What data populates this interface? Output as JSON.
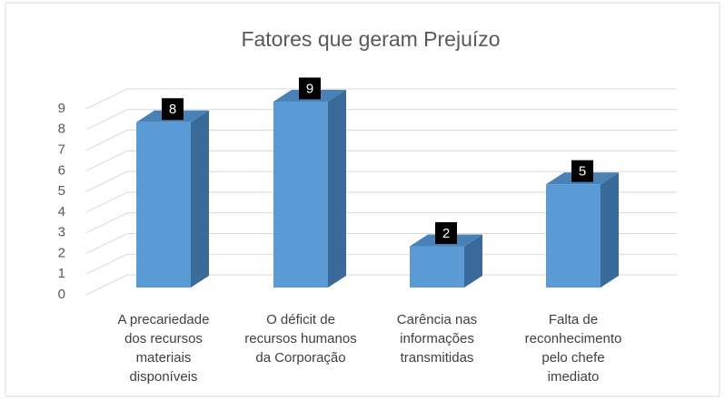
{
  "chart_data": {
    "type": "bar3d",
    "title": "Fatores que geram Prejuízo",
    "categories": [
      "A precariedade dos recursos materiais disponíveis",
      "O déficit de recursos humanos da Corporação",
      "Carência nas informações transmitidas",
      "Falta de reconhecimento pelo chefe imediato"
    ],
    "values": [
      8,
      9,
      2,
      5
    ],
    "color": "#5b9bd5",
    "side_color": "#3a6a99",
    "top_color": "#4a82b8",
    "ylim": [
      0,
      9
    ],
    "yticks": [
      0,
      1,
      2,
      3,
      4,
      5,
      6,
      7,
      8,
      9
    ],
    "grid": true,
    "data_labels": true
  }
}
